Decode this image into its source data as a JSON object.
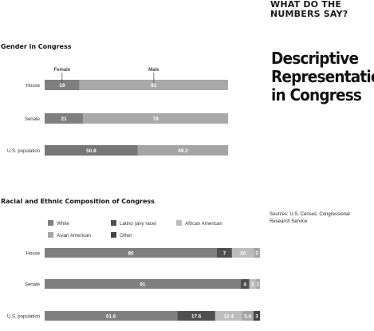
{
  "kicker": "WHAT DO THE NUMBERS SAY?",
  "headline": "Descriptive Representation in Congress",
  "sources": "Sources: U.S. Census; Congressional Research Service",
  "colors": {
    "white": "#7f7f7f",
    "male": "#a9a9a9",
    "female": "#7f7f7f",
    "latino": "#4f4f4f",
    "african_american": "#bdbdbd",
    "asian_american": "#a6a6a6",
    "other": "#444444",
    "population_female": "#767676",
    "population_male": "#a5a5a5"
  },
  "chart_data": [
    {
      "type": "bar",
      "stacked": true,
      "orientation": "horizontal",
      "title": "Gender in Congress",
      "categories": [
        "House",
        "Senate",
        "U.S. population"
      ],
      "series": [
        {
          "name": "Female",
          "values": [
            19,
            21,
            50.8
          ],
          "labels": [
            "19",
            "21",
            "50.8"
          ]
        },
        {
          "name": "Male",
          "values": [
            81,
            79,
            49.2
          ],
          "labels": [
            "81",
            "79",
            "49.2"
          ]
        }
      ],
      "xlim": [
        0,
        100
      ],
      "legend": "callouts above House bar",
      "grid": false
    },
    {
      "type": "bar",
      "stacked": true,
      "orientation": "horizontal",
      "title": "Racial and Ethnic Composition of Congress",
      "categories": [
        "House",
        "Senate",
        "U.S. population"
      ],
      "legend_entries": [
        "White",
        "Latino (any race)",
        "African American",
        "Asian American",
        "Other"
      ],
      "series": [
        {
          "name": "White",
          "values": [
            80,
            91,
            61.6
          ],
          "labels": [
            "80",
            "91",
            "61.6"
          ]
        },
        {
          "name": "Latino (any race)",
          "values": [
            7,
            4,
            17.6
          ],
          "labels": [
            "7",
            "4",
            "17.6"
          ]
        },
        {
          "name": "African American",
          "values": [
            10,
            3,
            12.4
          ],
          "labels": [
            "10",
            "3",
            "12.4"
          ]
        },
        {
          "name": "Asian American",
          "values": [
            3,
            2,
            5.4
          ],
          "labels": [
            "3",
            "2",
            "5.4"
          ]
        },
        {
          "name": "Other",
          "values": [
            0,
            0,
            3
          ],
          "labels": [
            "",
            "",
            "3"
          ]
        }
      ],
      "xlim": [
        0,
        100
      ],
      "legend": "top",
      "grid": false
    }
  ]
}
